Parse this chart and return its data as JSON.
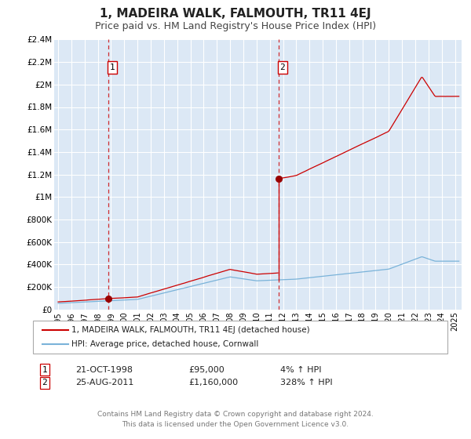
{
  "title": "1, MADEIRA WALK, FALMOUTH, TR11 4EJ",
  "subtitle": "Price paid vs. HM Land Registry's House Price Index (HPI)",
  "xlim": [
    1994.7,
    2025.5
  ],
  "ylim": [
    0,
    2400000
  ],
  "yticks": [
    0,
    200000,
    400000,
    600000,
    800000,
    1000000,
    1200000,
    1400000,
    1600000,
    1800000,
    2000000,
    2200000,
    2400000
  ],
  "ytick_labels": [
    "£0",
    "£200K",
    "£400K",
    "£600K",
    "£800K",
    "£1M",
    "£1.2M",
    "£1.4M",
    "£1.6M",
    "£1.8M",
    "£2M",
    "£2.2M",
    "£2.4M"
  ],
  "bg_color": "#dce8f5",
  "fig_bg_color": "#ffffff",
  "grid_color": "#ffffff",
  "hpi_color": "#7ab3d9",
  "price_color": "#cc0000",
  "marker_color": "#990000",
  "vline_color": "#cc0000",
  "transaction1_year": 1998.8,
  "transaction1_price": 95000,
  "transaction1_label": "1",
  "transaction1_date": "21-OCT-1998",
  "transaction1_pct": "4%",
  "transaction2_year": 2011.65,
  "transaction2_price": 1160000,
  "transaction2_label": "2",
  "transaction2_date": "25-AUG-2011",
  "transaction2_pct": "328%",
  "legend_line1": "1, MADEIRA WALK, FALMOUTH, TR11 4EJ (detached house)",
  "legend_line2": "HPI: Average price, detached house, Cornwall",
  "footer1": "Contains HM Land Registry data © Crown copyright and database right 2024.",
  "footer2": "This data is licensed under the Open Government Licence v3.0.",
  "title_fontsize": 11,
  "subtitle_fontsize": 9
}
